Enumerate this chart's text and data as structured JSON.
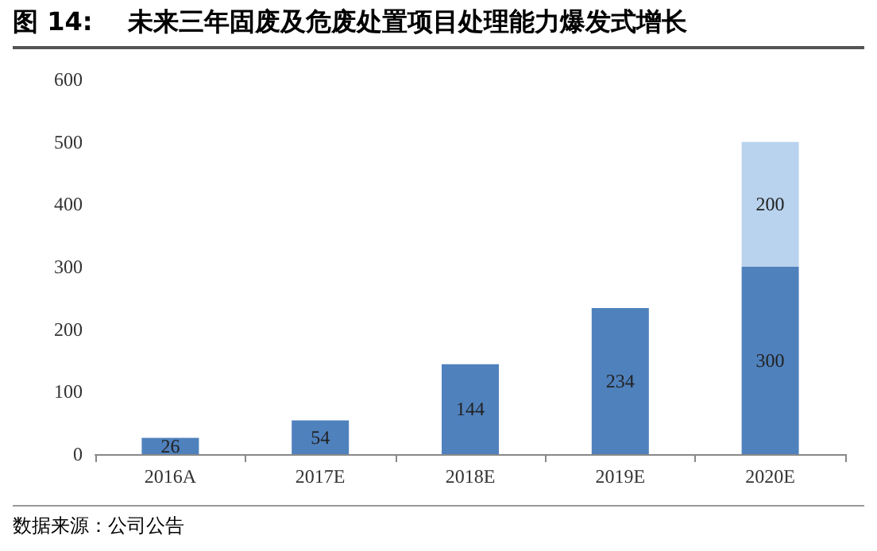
{
  "chart_data": {
    "type": "bar",
    "title": "图 14:    未来三年固废及危废处置项目处理能力爆发式增长",
    "categories": [
      "2016A",
      "2017E",
      "2018E",
      "2019E",
      "2020E"
    ],
    "series": [
      {
        "color": "#4f81bd",
        "values": [
          26,
          54,
          144,
          234,
          300
        ]
      },
      {
        "color": "#b9d3ee",
        "values": [
          null,
          null,
          null,
          null,
          200
        ]
      }
    ],
    "stacked": true,
    "data_labels": true,
    "ylim": [
      0,
      600
    ],
    "yticks": [
      0,
      100,
      200,
      300,
      400,
      500,
      600
    ],
    "grid": false,
    "annotations": [
      "数据来源：公司公告"
    ]
  }
}
